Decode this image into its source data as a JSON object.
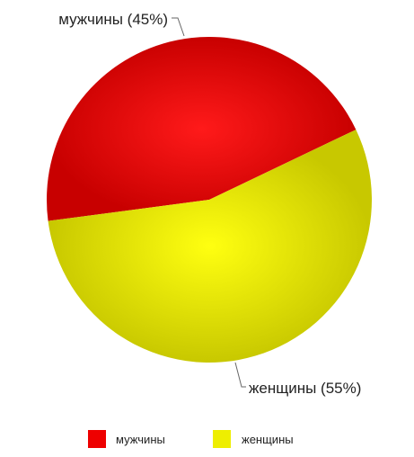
{
  "chart_data": {
    "type": "pie",
    "title": "",
    "slices": [
      {
        "name": "мужчины",
        "value": 45,
        "label": "мужчины (45%)",
        "color": "#ee0000"
      },
      {
        "name": "женщины",
        "value": 55,
        "label": "женщины (55%)",
        "color": "#eeee00"
      }
    ],
    "legend": {
      "placement": "bottom",
      "items": [
        "мужчины",
        "женщины"
      ]
    }
  }
}
